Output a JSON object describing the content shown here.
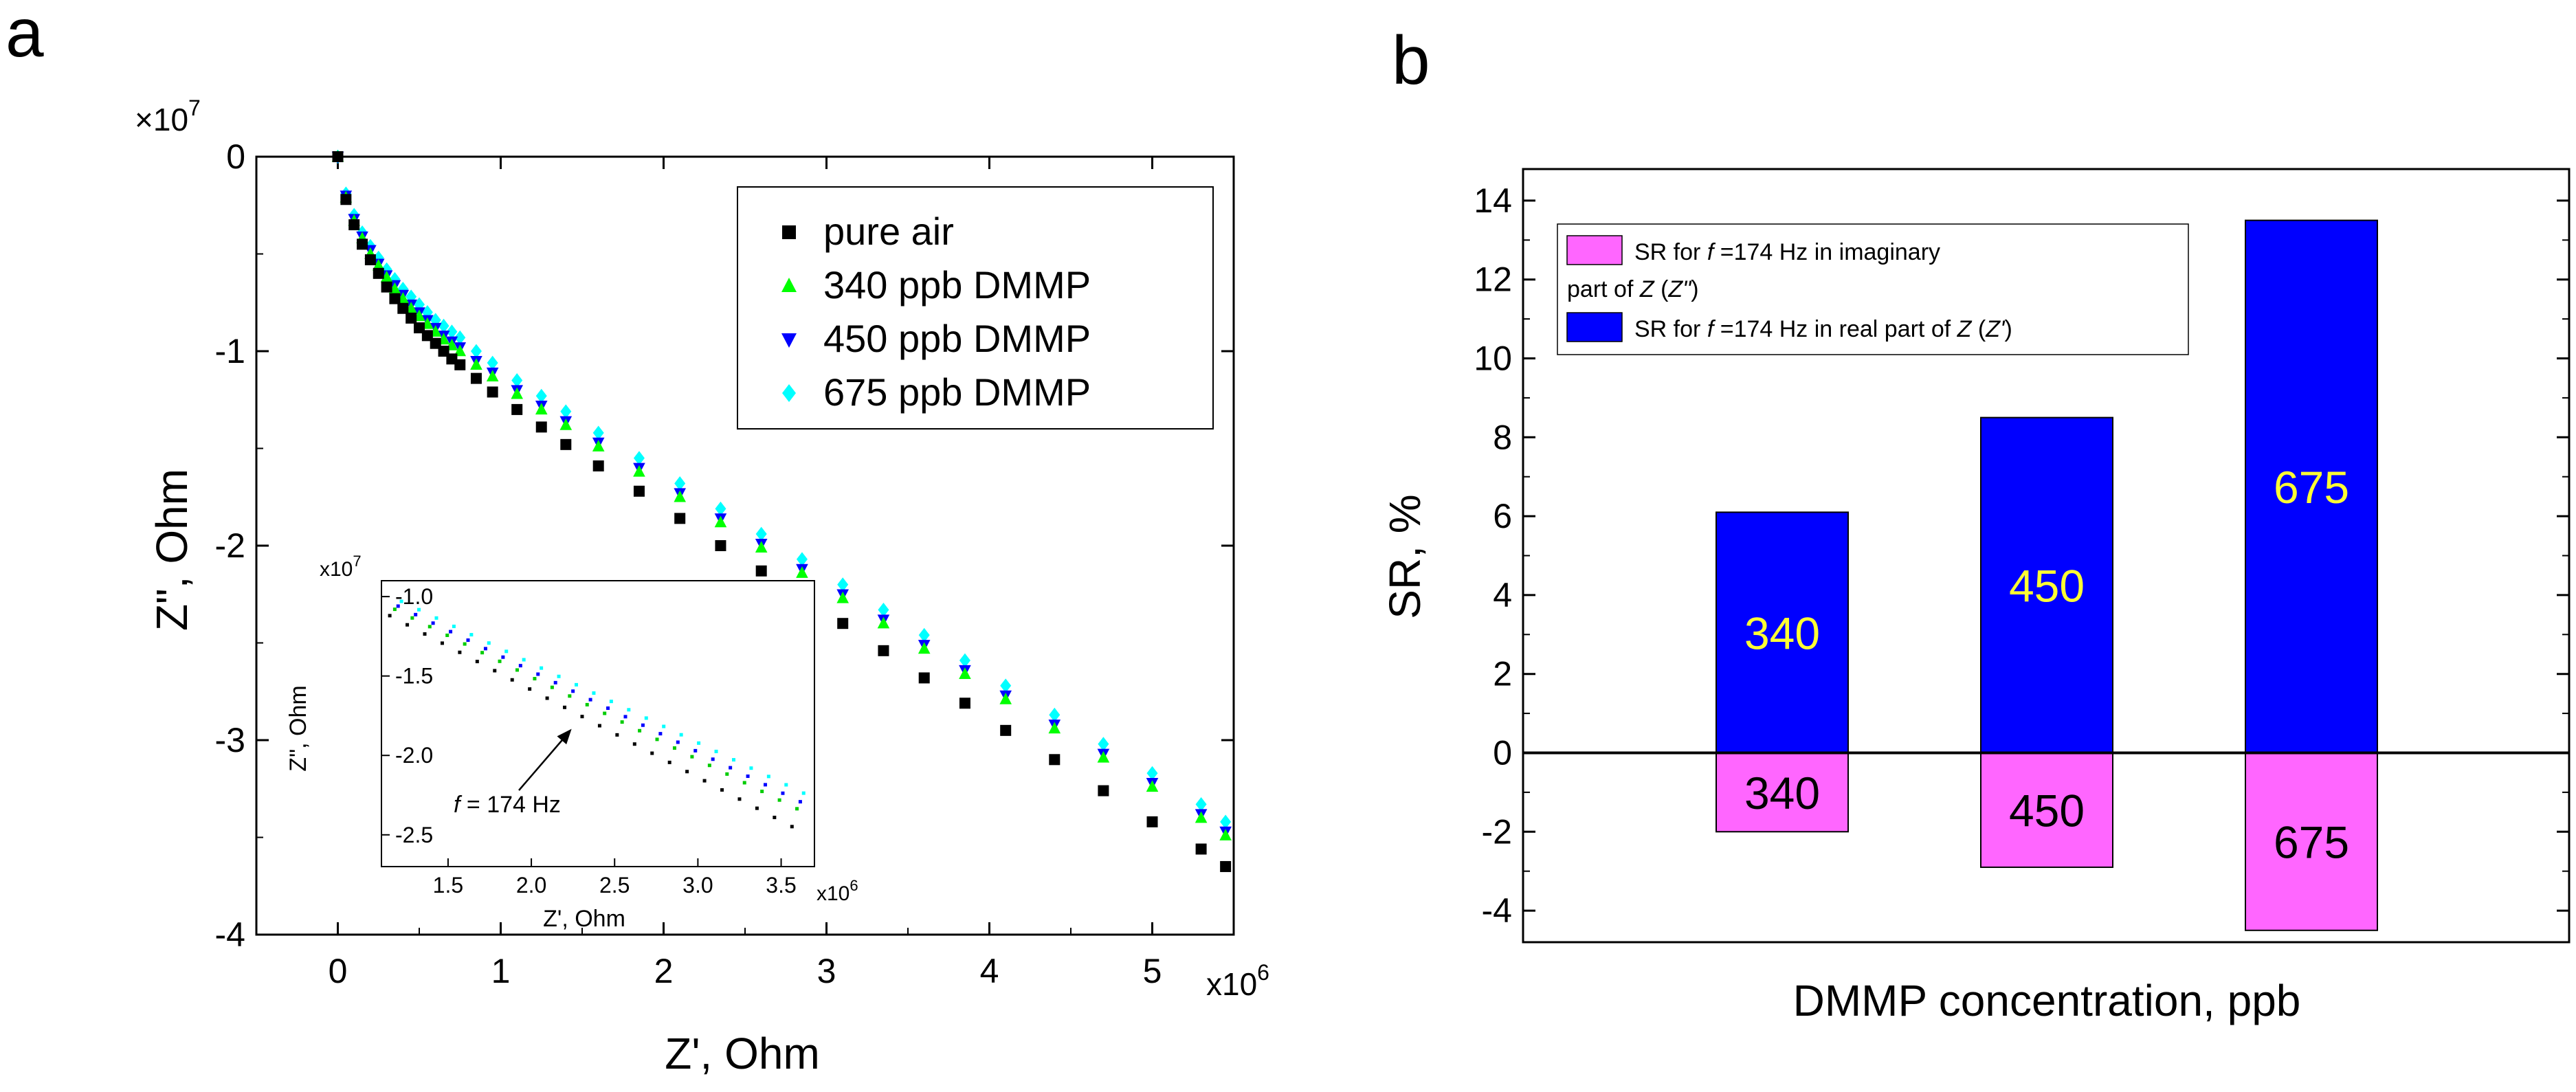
{
  "panels": {
    "a": {
      "label": "a"
    },
    "b": {
      "label": "b"
    }
  },
  "chart_data": [
    {
      "id": "panel-a",
      "type": "scatter",
      "title": "",
      "xlabel": "Z', Ohm",
      "ylabel": "Z\", Ohm",
      "xlim": [
        -0.5,
        5.5
      ],
      "ylim": [
        -4,
        0
      ],
      "x_scale_label": "x10",
      "x_scale_exp": "6",
      "y_scale_label": "×10",
      "y_scale_exp": "7",
      "xticks": [
        0,
        1,
        2,
        3,
        4,
        5
      ],
      "xtick_labels": [
        "0",
        "1",
        "2",
        "3",
        "4",
        "5"
      ],
      "yticks": [
        0,
        -1,
        -2,
        -3,
        -4
      ],
      "ytick_labels": [
        "0",
        "-1",
        "-2",
        "-3",
        "-4"
      ],
      "legend": {
        "position": "top-right"
      },
      "series": [
        {
          "name": "pure air",
          "marker": "square",
          "color": "#000000",
          "points": [
            [
              0,
              0
            ],
            [
              0.05,
              -0.22
            ],
            [
              0.1,
              -0.35
            ],
            [
              0.15,
              -0.45
            ],
            [
              0.2,
              -0.53
            ],
            [
              0.25,
              -0.6
            ],
            [
              0.3,
              -0.67
            ],
            [
              0.35,
              -0.73
            ],
            [
              0.4,
              -0.78
            ],
            [
              0.45,
              -0.83
            ],
            [
              0.5,
              -0.88
            ],
            [
              0.55,
              -0.92
            ],
            [
              0.6,
              -0.96
            ],
            [
              0.65,
              -1.0
            ],
            [
              0.7,
              -1.04
            ],
            [
              0.75,
              -1.07
            ],
            [
              0.85,
              -1.14
            ],
            [
              0.95,
              -1.21
            ],
            [
              1.1,
              -1.3
            ],
            [
              1.25,
              -1.39
            ],
            [
              1.4,
              -1.48
            ],
            [
              1.6,
              -1.59
            ],
            [
              1.85,
              -1.72
            ],
            [
              2.1,
              -1.86
            ],
            [
              2.35,
              -2.0
            ],
            [
              2.6,
              -2.13
            ],
            [
              2.85,
              -2.27
            ],
            [
              3.1,
              -2.4
            ],
            [
              3.35,
              -2.54
            ],
            [
              3.6,
              -2.68
            ],
            [
              3.85,
              -2.81
            ],
            [
              4.1,
              -2.95
            ],
            [
              4.4,
              -3.1
            ],
            [
              4.7,
              -3.26
            ],
            [
              5.0,
              -3.42
            ],
            [
              5.3,
              -3.56
            ],
            [
              5.45,
              -3.65
            ]
          ]
        },
        {
          "name": "340 ppb DMMP",
          "marker": "triangle-up",
          "color": "#00ff00",
          "points": [
            [
              0,
              0
            ],
            [
              0.05,
              -0.21
            ],
            [
              0.1,
              -0.33
            ],
            [
              0.15,
              -0.42
            ],
            [
              0.2,
              -0.5
            ],
            [
              0.25,
              -0.56
            ],
            [
              0.3,
              -0.62
            ],
            [
              0.35,
              -0.68
            ],
            [
              0.4,
              -0.73
            ],
            [
              0.45,
              -0.78
            ],
            [
              0.5,
              -0.82
            ],
            [
              0.55,
              -0.86
            ],
            [
              0.6,
              -0.9
            ],
            [
              0.65,
              -0.94
            ],
            [
              0.7,
              -0.97
            ],
            [
              0.75,
              -1.0
            ],
            [
              0.85,
              -1.07
            ],
            [
              0.95,
              -1.13
            ],
            [
              1.1,
              -1.22
            ],
            [
              1.25,
              -1.3
            ],
            [
              1.4,
              -1.38
            ],
            [
              1.6,
              -1.49
            ],
            [
              1.85,
              -1.62
            ],
            [
              2.1,
              -1.75
            ],
            [
              2.35,
              -1.88
            ],
            [
              2.6,
              -2.01
            ],
            [
              2.85,
              -2.14
            ],
            [
              3.1,
              -2.27
            ],
            [
              3.35,
              -2.4
            ],
            [
              3.6,
              -2.53
            ],
            [
              3.85,
              -2.66
            ],
            [
              4.1,
              -2.79
            ],
            [
              4.4,
              -2.94
            ],
            [
              4.7,
              -3.09
            ],
            [
              5.0,
              -3.24
            ],
            [
              5.3,
              -3.4
            ],
            [
              5.45,
              -3.49
            ]
          ]
        },
        {
          "name": "450 ppb DMMP",
          "marker": "triangle-down",
          "color": "#0000ff",
          "points": [
            [
              0,
              0
            ],
            [
              0.05,
              -0.2
            ],
            [
              0.1,
              -0.32
            ],
            [
              0.15,
              -0.41
            ],
            [
              0.2,
              -0.48
            ],
            [
              0.25,
              -0.55
            ],
            [
              0.3,
              -0.61
            ],
            [
              0.35,
              -0.66
            ],
            [
              0.4,
              -0.71
            ],
            [
              0.45,
              -0.76
            ],
            [
              0.5,
              -0.8
            ],
            [
              0.55,
              -0.84
            ],
            [
              0.6,
              -0.88
            ],
            [
              0.65,
              -0.92
            ],
            [
              0.7,
              -0.95
            ],
            [
              0.75,
              -0.98
            ],
            [
              0.85,
              -1.05
            ],
            [
              0.95,
              -1.11
            ],
            [
              1.1,
              -1.2
            ],
            [
              1.25,
              -1.28
            ],
            [
              1.4,
              -1.36
            ],
            [
              1.6,
              -1.47
            ],
            [
              1.85,
              -1.6
            ],
            [
              2.1,
              -1.73
            ],
            [
              2.35,
              -1.86
            ],
            [
              2.6,
              -1.99
            ],
            [
              2.85,
              -2.12
            ],
            [
              3.1,
              -2.25
            ],
            [
              3.35,
              -2.38
            ],
            [
              3.6,
              -2.51
            ],
            [
              3.85,
              -2.64
            ],
            [
              4.1,
              -2.77
            ],
            [
              4.4,
              -2.92
            ],
            [
              4.7,
              -3.07
            ],
            [
              5.0,
              -3.22
            ],
            [
              5.3,
              -3.38
            ],
            [
              5.45,
              -3.47
            ]
          ]
        },
        {
          "name": "675 ppb DMMP",
          "marker": "diamond",
          "color": "#00ffff",
          "points": [
            [
              0,
              0
            ],
            [
              0.05,
              -0.19
            ],
            [
              0.1,
              -0.3
            ],
            [
              0.15,
              -0.39
            ],
            [
              0.2,
              -0.46
            ],
            [
              0.25,
              -0.52
            ],
            [
              0.3,
              -0.58
            ],
            [
              0.35,
              -0.63
            ],
            [
              0.4,
              -0.68
            ],
            [
              0.45,
              -0.72
            ],
            [
              0.5,
              -0.76
            ],
            [
              0.55,
              -0.8
            ],
            [
              0.6,
              -0.84
            ],
            [
              0.65,
              -0.87
            ],
            [
              0.7,
              -0.9
            ],
            [
              0.75,
              -0.93
            ],
            [
              0.85,
              -1.0
            ],
            [
              0.95,
              -1.06
            ],
            [
              1.1,
              -1.15
            ],
            [
              1.25,
              -1.23
            ],
            [
              1.4,
              -1.31
            ],
            [
              1.6,
              -1.42
            ],
            [
              1.85,
              -1.55
            ],
            [
              2.1,
              -1.68
            ],
            [
              2.35,
              -1.81
            ],
            [
              2.6,
              -1.94
            ],
            [
              2.85,
              -2.07
            ],
            [
              3.1,
              -2.2
            ],
            [
              3.35,
              -2.33
            ],
            [
              3.6,
              -2.46
            ],
            [
              3.85,
              -2.59
            ],
            [
              4.1,
              -2.72
            ],
            [
              4.4,
              -2.87
            ],
            [
              4.7,
              -3.02
            ],
            [
              5.0,
              -3.17
            ],
            [
              5.3,
              -3.33
            ],
            [
              5.45,
              -3.42
            ]
          ]
        }
      ],
      "inset": {
        "type": "scatter",
        "xlabel": "Z', Ohm",
        "ylabel": "Z\", Ohm",
        "xlim": [
          1.1,
          3.7
        ],
        "ylim": [
          -2.7,
          -0.9
        ],
        "x_scale_label": "x10",
        "x_scale_exp": "6",
        "y_scale_label": "x10",
        "y_scale_exp": "7",
        "xticks": [
          1.5,
          2.0,
          2.5,
          3.0,
          3.5
        ],
        "xtick_labels": [
          "1.5",
          "2.0",
          "2.5",
          "3.0",
          "3.5"
        ],
        "yticks": [
          -1.0,
          -1.5,
          -2.0,
          -2.5
        ],
        "ytick_labels": [
          "-1.0",
          "-1.5",
          "-2.0",
          "-2.5"
        ],
        "annotation": {
          "italic": "f",
          "text": " = 174 Hz",
          "x": 2.25,
          "y": -1.82
        },
        "series": [
          {
            "name": "pure air",
            "color": "#000000",
            "start": [
              1.15,
              -1.12
            ],
            "slope": -0.55,
            "n": 24
          },
          {
            "name": "340 ppb DMMP",
            "color": "#00cc00",
            "start": [
              1.18,
              -1.08
            ],
            "slope": -0.52,
            "n": 24
          },
          {
            "name": "450 ppb DMMP",
            "color": "#0000ff",
            "start": [
              1.2,
              -1.06
            ],
            "slope": -0.51,
            "n": 24
          },
          {
            "name": "675 ppb DMMP",
            "color": "#00ffff",
            "start": [
              1.22,
              -1.03
            ],
            "slope": -0.5,
            "n": 24
          }
        ]
      }
    },
    {
      "id": "panel-b",
      "type": "bar",
      "title": "",
      "xlabel": "DMMP concentration, ppb",
      "ylabel": "SR, %",
      "ylim": [
        -4.8,
        14.8
      ],
      "yticks": [
        -4,
        -2,
        0,
        2,
        4,
        6,
        8,
        10,
        12,
        14
      ],
      "ytick_labels": [
        "-4",
        "-2",
        "0",
        "2",
        "4",
        "6",
        "8",
        "10",
        "12",
        "14"
      ],
      "categories": [
        "340",
        "450",
        "675"
      ],
      "series": [
        {
          "name": "SR for f =174 Hz in imaginary part of Z (Z\")",
          "color": "#ff66ff",
          "values": [
            -2.0,
            -2.9,
            -4.5
          ],
          "label_color": "#000000"
        },
        {
          "name": "SR for f =174 Hz in real part of Z (Z')",
          "color": "#0000ff",
          "values": [
            6.1,
            8.5,
            13.5
          ],
          "label_color": "#ffff33"
        }
      ],
      "legend": {
        "position": "top-left",
        "entry1_line1_a": "SR for ",
        "entry1_line1_f": "f",
        "entry1_line1_b": " =174 Hz in imaginary",
        "entry1_line2_a": "part of ",
        "entry1_line2_z": "Z",
        "entry1_line2_b": " (",
        "entry1_line2_zz": "Z\"",
        "entry1_line2_c": ")",
        "entry2_a": "SR for ",
        "entry2_f": "f",
        "entry2_b": " =174 Hz in real part of ",
        "entry2_z": "Z",
        "entry2_c": " (",
        "entry2_zz": "Z'",
        "entry2_d": ")"
      }
    }
  ]
}
